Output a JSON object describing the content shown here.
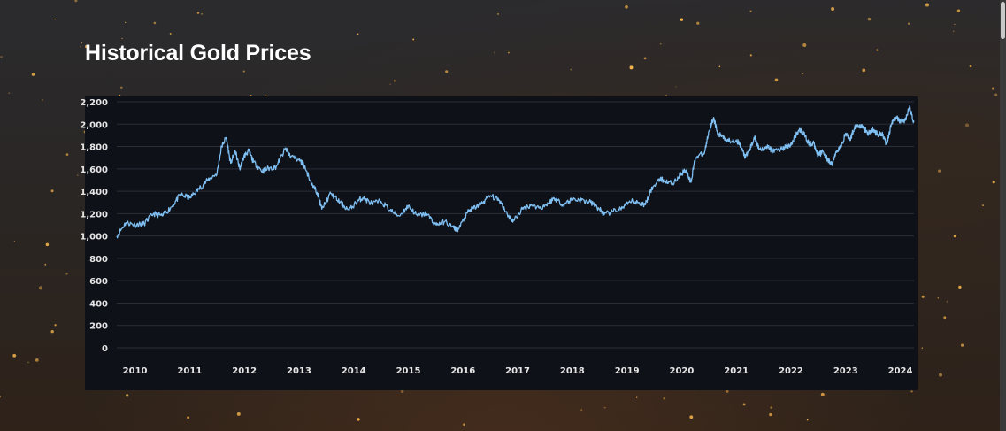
{
  "page": {
    "title": "Historical Gold Prices"
  },
  "colors": {
    "line": "#7fbff2",
    "panel_background": "#0f1118",
    "grid": "#2b2f3a",
    "text": "#ffffff",
    "star": "#f2b24a"
  },
  "chart_data": {
    "type": "line",
    "title": "",
    "xlabel": "",
    "ylabel": "",
    "ylim": [
      0,
      2200
    ],
    "xlim": [
      "2009-09",
      "2024-04"
    ],
    "grid": true,
    "x_ticks": [
      "2010",
      "2011",
      "2012",
      "2013",
      "2014",
      "2015",
      "2016",
      "2017",
      "2018",
      "2019",
      "2020",
      "2021",
      "2022",
      "2023",
      "2024"
    ],
    "y_ticks": [
      "0",
      "200",
      "400",
      "600",
      "800",
      "1,000",
      "1,200",
      "1,400",
      "1,600",
      "1,800",
      "2,000",
      "2,200"
    ],
    "series": [
      {
        "x": [
          "2009-09",
          "2009-11",
          "2010-01",
          "2010-03",
          "2010-05",
          "2010-07",
          "2010-09",
          "2010-11",
          "2011-01",
          "2011-03",
          "2011-05",
          "2011-07",
          "2011-08",
          "2011-09",
          "2011-10",
          "2011-11",
          "2011-12",
          "2012-01",
          "2012-02",
          "2012-03",
          "2012-05",
          "2012-06",
          "2012-08",
          "2012-10",
          "2012-11",
          "2013-01",
          "2013-02",
          "2013-04",
          "2013-05",
          "2013-06",
          "2013-08",
          "2013-10",
          "2013-12",
          "2014-02",
          "2014-03",
          "2014-05",
          "2014-07",
          "2014-09",
          "2014-11",
          "2015-01",
          "2015-03",
          "2015-05",
          "2015-07",
          "2015-09",
          "2015-11",
          "2015-12",
          "2016-02",
          "2016-03",
          "2016-05",
          "2016-07",
          "2016-09",
          "2016-11",
          "2016-12",
          "2017-02",
          "2017-04",
          "2017-06",
          "2017-08",
          "2017-09",
          "2017-11",
          "2018-01",
          "2018-03",
          "2018-05",
          "2018-07",
          "2018-08",
          "2018-10",
          "2018-12",
          "2019-02",
          "2019-04",
          "2019-05",
          "2019-06",
          "2019-08",
          "2019-09",
          "2019-11",
          "2020-01",
          "2020-02",
          "2020-03",
          "2020-04",
          "2020-06",
          "2020-07",
          "2020-08",
          "2020-09",
          "2020-10",
          "2020-11",
          "2021-01",
          "2021-02",
          "2021-03",
          "2021-04",
          "2021-05",
          "2021-06",
          "2021-08",
          "2021-09",
          "2021-11",
          "2021-12",
          "2022-01",
          "2022-02",
          "2022-03",
          "2022-04",
          "2022-05",
          "2022-06",
          "2022-07",
          "2022-08",
          "2022-09",
          "2022-10",
          "2022-11",
          "2022-12",
          "2023-01",
          "2023-02",
          "2023-03",
          "2023-04",
          "2023-05",
          "2023-06",
          "2023-07",
          "2023-08",
          "2023-09",
          "2023-10",
          "2023-11",
          "2023-12",
          "2024-01",
          "2024-02",
          "2024-03",
          "2024-04"
        ],
        "y": [
          1000,
          1120,
          1100,
          1110,
          1200,
          1180,
          1260,
          1370,
          1340,
          1420,
          1500,
          1560,
          1800,
          1880,
          1650,
          1760,
          1600,
          1720,
          1760,
          1660,
          1580,
          1600,
          1620,
          1780,
          1720,
          1680,
          1640,
          1450,
          1390,
          1240,
          1380,
          1300,
          1230,
          1320,
          1340,
          1290,
          1310,
          1230,
          1180,
          1270,
          1180,
          1200,
          1100,
          1130,
          1070,
          1060,
          1210,
          1240,
          1290,
          1360,
          1320,
          1180,
          1130,
          1240,
          1280,
          1250,
          1300,
          1340,
          1280,
          1330,
          1320,
          1300,
          1240,
          1190,
          1220,
          1250,
          1310,
          1290,
          1280,
          1390,
          1510,
          1500,
          1470,
          1560,
          1590,
          1480,
          1700,
          1740,
          1940,
          2060,
          1900,
          1900,
          1850,
          1860,
          1800,
          1700,
          1780,
          1880,
          1780,
          1790,
          1760,
          1780,
          1800,
          1810,
          1900,
          1950,
          1900,
          1820,
          1830,
          1720,
          1760,
          1680,
          1640,
          1760,
          1800,
          1920,
          1860,
          1980,
          1990,
          1960,
          1920,
          1950,
          1910,
          1920,
          1820,
          2000,
          2060,
          2030,
          2030,
          2150,
          2020
        ]
      }
    ]
  }
}
